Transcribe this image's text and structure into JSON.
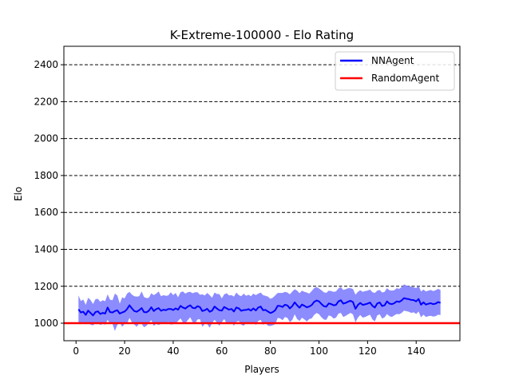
{
  "chart_data": {
    "type": "line",
    "title": "K-Extreme-100000 - Elo Rating",
    "xlabel": "Players",
    "ylabel": "Elo",
    "xlim": [
      -5,
      158
    ],
    "ylim": [
      905,
      2500
    ],
    "xticks": [
      0,
      20,
      40,
      60,
      80,
      100,
      120,
      140
    ],
    "yticks": [
      1000,
      1200,
      1400,
      1600,
      1800,
      2000,
      2200,
      2400
    ],
    "grid": "horizontal-dashed",
    "legend_position": "top-right",
    "series": [
      {
        "name": "NNAgent",
        "color": "#0000ff",
        "band_color": "#7f7fff",
        "x": [
          1,
          2,
          3,
          4,
          5,
          6,
          7,
          8,
          9,
          10,
          11,
          12,
          13,
          14,
          15,
          16,
          17,
          18,
          19,
          20,
          21,
          22,
          23,
          24,
          25,
          26,
          27,
          28,
          29,
          30,
          31,
          32,
          33,
          34,
          35,
          36,
          37,
          38,
          39,
          40,
          41,
          42,
          43,
          44,
          45,
          46,
          47,
          48,
          49,
          50,
          51,
          52,
          53,
          54,
          55,
          56,
          57,
          58,
          59,
          60,
          61,
          62,
          63,
          64,
          65,
          66,
          67,
          68,
          69,
          70,
          71,
          72,
          73,
          74,
          75,
          76,
          77,
          78,
          79,
          80,
          81,
          82,
          83,
          84,
          85,
          86,
          87,
          88,
          89,
          90,
          91,
          92,
          93,
          94,
          95,
          96,
          97,
          98,
          99,
          100,
          101,
          102,
          103,
          104,
          105,
          106,
          107,
          108,
          109,
          110,
          111,
          112,
          113,
          114,
          115,
          116,
          117,
          118,
          119,
          120,
          121,
          122,
          123,
          124,
          125,
          126,
          127,
          128,
          129,
          130,
          131,
          132,
          133,
          134,
          135,
          136,
          137,
          138,
          139,
          140,
          141,
          142,
          143,
          144,
          145,
          146,
          147,
          148,
          149,
          150
        ],
        "values": [
          1075,
          1058,
          1062,
          1045,
          1068,
          1055,
          1042,
          1060,
          1064,
          1050,
          1056,
          1052,
          1085,
          1060,
          1058,
          1066,
          1070,
          1052,
          1058,
          1063,
          1076,
          1097,
          1080,
          1066,
          1062,
          1070,
          1082,
          1060,
          1059,
          1068,
          1086,
          1066,
          1076,
          1082,
          1067,
          1073,
          1070,
          1077,
          1077,
          1071,
          1080,
          1073,
          1094,
          1085,
          1079,
          1090,
          1097,
          1083,
          1081,
          1092,
          1087,
          1066,
          1070,
          1078,
          1062,
          1068,
          1090,
          1079,
          1070,
          1068,
          1088,
          1080,
          1073,
          1077,
          1063,
          1085,
          1080,
          1067,
          1071,
          1072,
          1076,
          1068,
          1080,
          1069,
          1085,
          1090,
          1070,
          1072,
          1063,
          1055,
          1060,
          1070,
          1094,
          1093,
          1088,
          1100,
          1096,
          1080,
          1092,
          1113,
          1097,
          1084,
          1101,
          1094,
          1086,
          1090,
          1098,
          1115,
          1123,
          1118,
          1104,
          1092,
          1089,
          1107,
          1104,
          1097,
          1099,
          1118,
          1124,
          1106,
          1110,
          1117,
          1121,
          1114,
          1078,
          1098,
          1110,
          1099,
          1102,
          1106,
          1112,
          1094,
          1085,
          1107,
          1112,
          1093,
          1097,
          1118,
          1106,
          1103,
          1108,
          1118,
          1115,
          1123,
          1136,
          1132,
          1130,
          1126,
          1125,
          1118,
          1131,
          1100,
          1113,
          1101,
          1105,
          1108,
          1103,
          1106,
          1114,
          1110
        ],
        "lower": [
          1006,
          1002,
          998,
          994,
          1005,
          992,
          988,
          1000,
          1002,
          990,
          996,
          992,
          1018,
          998,
          996,
          958,
          990,
          1006,
          980,
          996,
          998,
          1028,
          1005,
          993,
          980,
          1000,
          996,
          978,
          986,
          1002,
          1016,
          985,
          996,
          990,
          996,
          1000,
          998,
          1008,
          992,
          995,
          999,
          1012,
          1026,
          1004,
          1000,
          1016,
          1032,
          1006,
          999,
          1020,
          1022,
          980,
          996,
          996,
          975,
          1002,
          1018,
          1004,
          986,
          1006,
          1022,
          1000,
          1000,
          1006,
          986,
          1008,
          1012,
          992,
          986,
          1000,
          1002,
          994,
          1004,
          990,
          1012,
          1018,
          991,
          1002,
          986,
          985,
          989,
          995,
          1028,
          1026,
          1016,
          1034,
          1028,
          1006,
          1017,
          1048,
          1022,
          1012,
          1030,
          1020,
          1009,
          1022,
          1026,
          1044,
          1055,
          1049,
          1032,
          1020,
          1018,
          1042,
          1038,
          1025,
          1030,
          1052,
          1056,
          1034,
          1040,
          1048,
          1056,
          1047,
          1005,
          1030,
          1044,
          1030,
          1034,
          1040,
          1046,
          1020,
          1010,
          1042,
          1048,
          1025,
          1032,
          1050,
          1038,
          1034,
          1042,
          1050,
          1048,
          1055,
          1068,
          1065,
          1062,
          1056,
          1059,
          1050,
          1063,
          1032,
          1046,
          1034,
          1038,
          1040,
          1036,
          1038,
          1046,
          1044
        ],
        "upper": [
          1150,
          1120,
          1128,
          1099,
          1138,
          1125,
          1104,
          1130,
          1132,
          1116,
          1124,
          1119,
          1156,
          1127,
          1124,
          1160,
          1150,
          1106,
          1140,
          1134,
          1160,
          1170,
          1155,
          1146,
          1144,
          1146,
          1172,
          1142,
          1136,
          1138,
          1162,
          1152,
          1160,
          1172,
          1146,
          1152,
          1148,
          1150,
          1168,
          1152,
          1164,
          1140,
          1168,
          1172,
          1160,
          1168,
          1170,
          1162,
          1168,
          1168,
          1154,
          1156,
          1150,
          1164,
          1152,
          1138,
          1166,
          1158,
          1158,
          1134,
          1156,
          1162,
          1150,
          1152,
          1144,
          1166,
          1152,
          1146,
          1160,
          1148,
          1154,
          1146,
          1160,
          1152,
          1160,
          1166,
          1152,
          1148,
          1144,
          1132,
          1138,
          1150,
          1164,
          1164,
          1164,
          1170,
          1166,
          1156,
          1171,
          1184,
          1176,
          1162,
          1176,
          1170,
          1166,
          1160,
          1174,
          1190,
          1196,
          1188,
          1178,
          1168,
          1164,
          1176,
          1174,
          1170,
          1172,
          1188,
          1196,
          1180,
          1184,
          1190,
          1190,
          1185,
          1155,
          1170,
          1178,
          1170,
          1174,
          1176,
          1182,
          1168,
          1164,
          1176,
          1180,
          1166,
          1170,
          1190,
          1178,
          1176,
          1178,
          1190,
          1186,
          1195,
          1210,
          1204,
          1200,
          1198,
          1194,
          1190,
          1203,
          1172,
          1182,
          1172,
          1176,
          1180,
          1174,
          1178,
          1186,
          1180
        ]
      },
      {
        "name": "RandomAgent",
        "color": "#ff0000",
        "constant": 1000
      }
    ]
  }
}
